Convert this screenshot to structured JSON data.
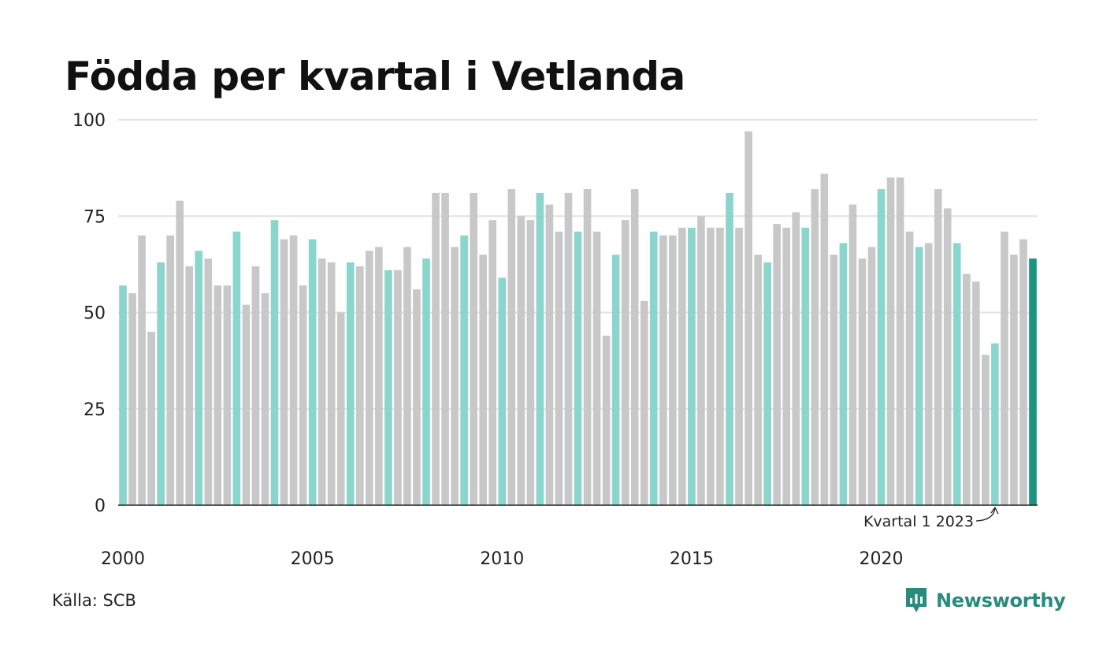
{
  "chart_data": {
    "type": "bar",
    "title": "Födda per kvartal i Vetlanda",
    "xlabel": "",
    "ylabel": "",
    "ylim": [
      0,
      100
    ],
    "yticks": [
      0,
      25,
      50,
      75,
      100
    ],
    "xtick_labels": [
      "2000",
      "2005",
      "2010",
      "2015",
      "2020"
    ],
    "start_year": 2000,
    "grid": true,
    "colors": {
      "q1": "#8ad6cc",
      "other": "#c8c8c8",
      "latest": "#1b9484",
      "axis": "#222222",
      "grid": "#e2e2e2"
    },
    "values": [
      57,
      55,
      70,
      45,
      63,
      70,
      79,
      62,
      66,
      64,
      57,
      57,
      71,
      52,
      62,
      55,
      74,
      69,
      70,
      57,
      69,
      64,
      63,
      50,
      63,
      62,
      66,
      67,
      61,
      61,
      67,
      56,
      64,
      81,
      81,
      67,
      70,
      81,
      65,
      74,
      59,
      82,
      75,
      74,
      81,
      78,
      71,
      81,
      71,
      82,
      71,
      44,
      65,
      74,
      82,
      53,
      71,
      70,
      70,
      72,
      72,
      75,
      72,
      72,
      81,
      72,
      97,
      65,
      63,
      73,
      72,
      76,
      72,
      82,
      86,
      65,
      68,
      78,
      64,
      67,
      82,
      85,
      85,
      71,
      67,
      68,
      82,
      77,
      68,
      60,
      58,
      39,
      42,
      71,
      65,
      69,
      64
    ],
    "annotation": {
      "label": "Kvartal 1 2023",
      "index": 92
    }
  },
  "source": "Källa: SCB",
  "brand": {
    "name": "Newsworthy",
    "icon": "bar-chart-logo-icon",
    "color": "#2a8a7e"
  }
}
